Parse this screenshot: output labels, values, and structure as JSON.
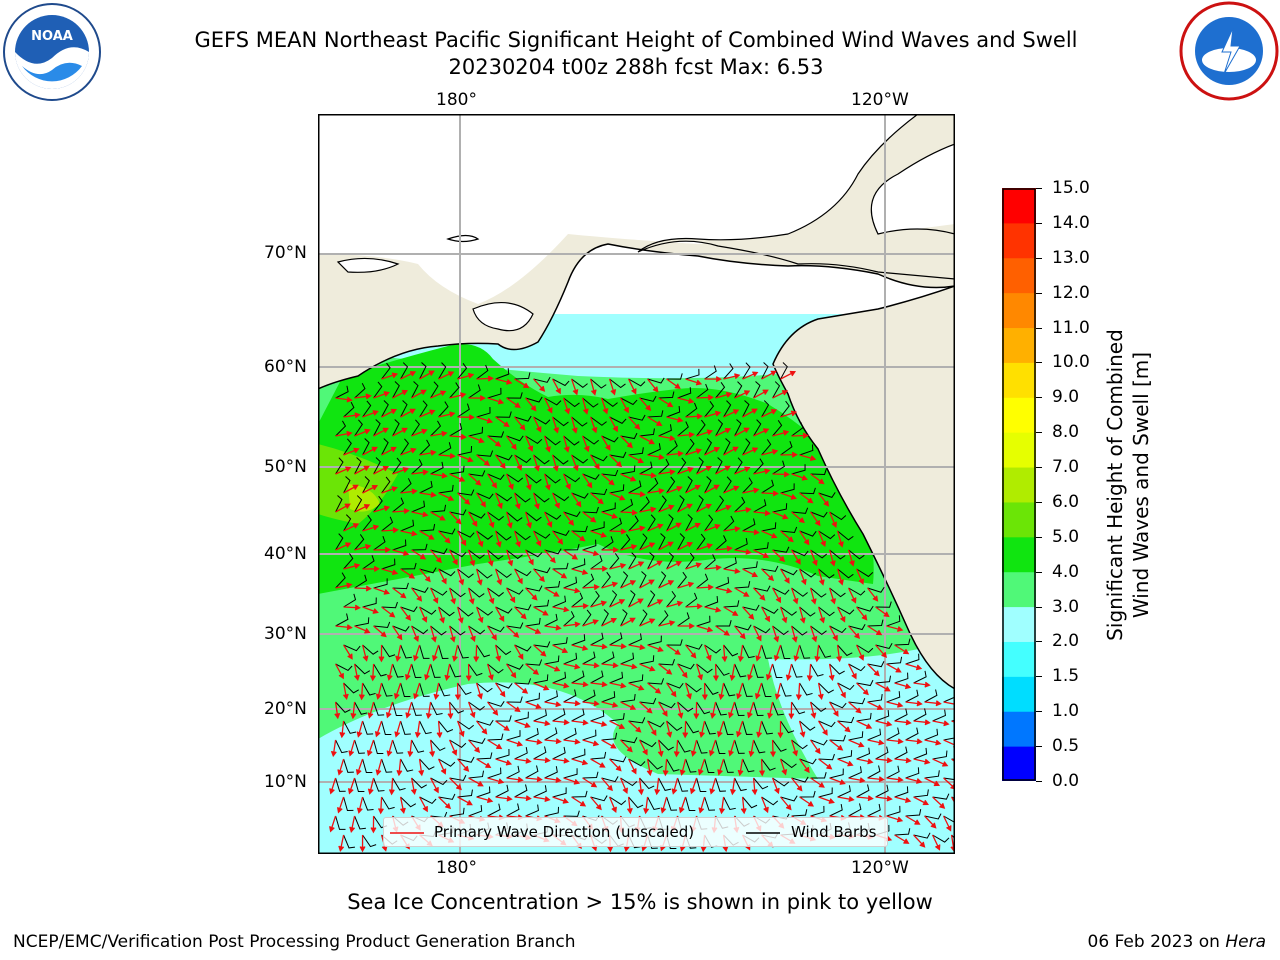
{
  "header": {
    "title_line1": "GEFS MEAN Northeast Pacific Significant Height of Combined Wind Waves and Swell",
    "title_line2": "20230204 t00z 288h fcst   Max: 6.53"
  },
  "logos": {
    "left": "NOAA",
    "right": "NATIONAL WEATHER SERVICE"
  },
  "map": {
    "top_lon_labels": [
      "180°",
      "120°W"
    ],
    "bottom_lon_labels": [
      "180°",
      "120°W"
    ],
    "lat_labels": [
      "70°N",
      "60°N",
      "50°N",
      "40°N",
      "30°N",
      "20°N",
      "10°N"
    ],
    "colors": {
      "land": "#efecdc",
      "ocean_low": "#a0ffff",
      "ocean_mid": "#50f878",
      "ocean_high": "#10e510",
      "wave_arrow": "#ee1111",
      "wind_barb": "#000000",
      "grid": "#b0b0b0"
    }
  },
  "legend": {
    "wave_label": "Primary Wave Direction (unscaled)",
    "wind_label": "Wind Barbs"
  },
  "colorbar": {
    "label_line1": "Significant Height of Combined",
    "label_line2": "Wind Waves and Swell [m]",
    "ticks": [
      "15.0",
      "14.0",
      "13.0",
      "12.0",
      "11.0",
      "10.0",
      "9.0",
      "8.0",
      "7.0",
      "6.0",
      "5.0",
      "4.0",
      "3.0",
      "2.0",
      "1.5",
      "1.0",
      "0.5",
      "0.0"
    ],
    "colors": [
      "#0000ff",
      "#0077ff",
      "#00ddff",
      "#44ffff",
      "#a0ffff",
      "#50f878",
      "#10e510",
      "#6be506",
      "#b0ec00",
      "#e6ff00",
      "#ffff00",
      "#ffe000",
      "#ffb000",
      "#ff8800",
      "#ff6000",
      "#ff3300",
      "#ff0000"
    ]
  },
  "note": "Sea Ice Concentration > 15% is shown in pink to yellow",
  "footer": {
    "left": "NCEP/EMC/Verification Post Processing Product Generation Branch",
    "right_prefix": "06 Feb 2023 on ",
    "right_host": "Hera"
  }
}
